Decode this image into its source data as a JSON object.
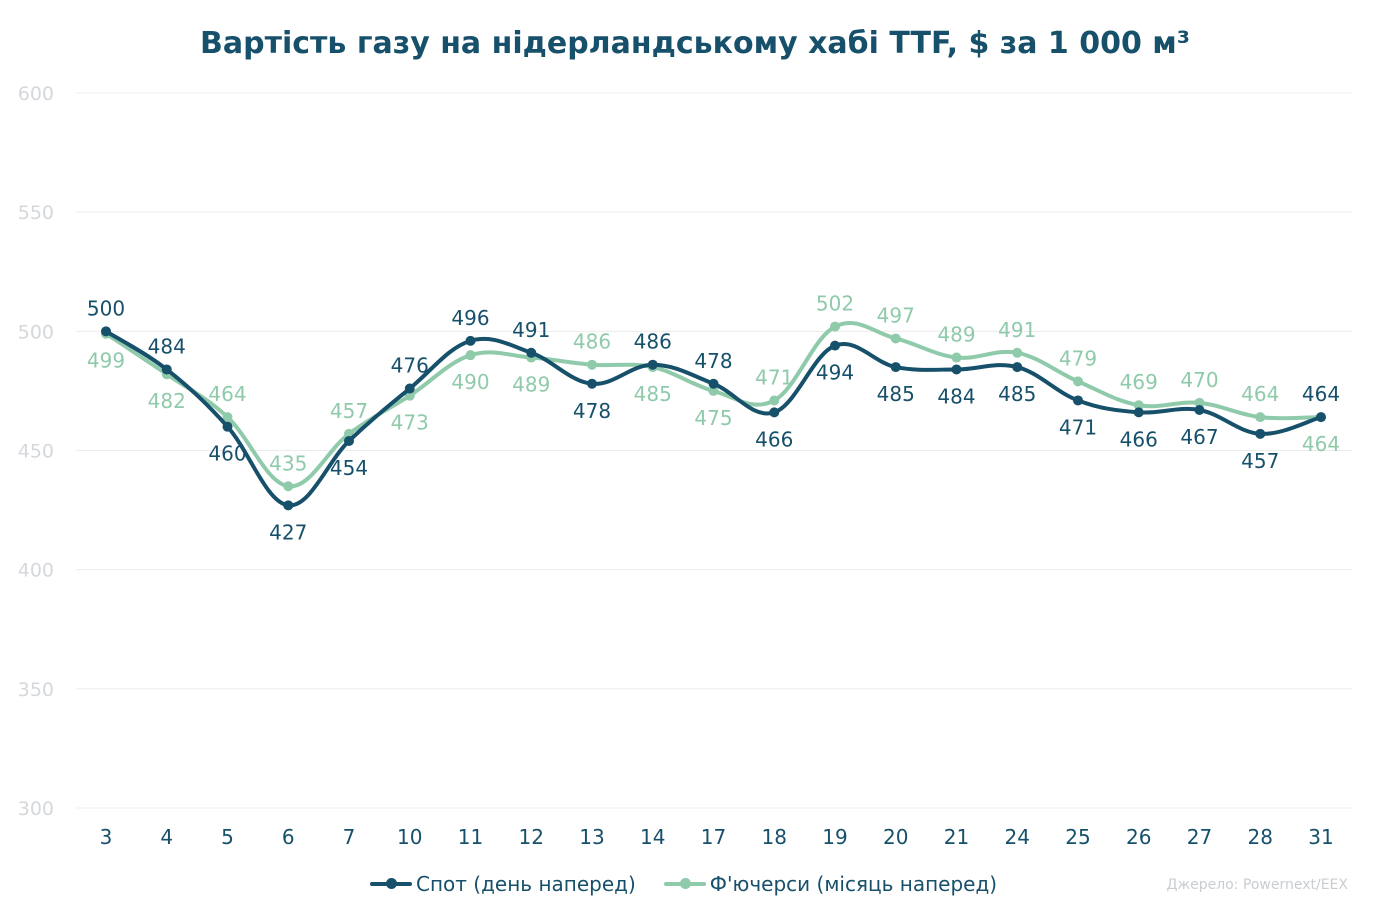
{
  "chart_data": {
    "type": "line",
    "title": "Вартість газу на нідерландському хабі TTF, $ за 1 000 м³",
    "categories": [
      "3",
      "4",
      "5",
      "6",
      "7",
      "10",
      "11",
      "12",
      "13",
      "14",
      "17",
      "18",
      "19",
      "20",
      "21",
      "24",
      "25",
      "26",
      "27",
      "28",
      "31"
    ],
    "series": [
      {
        "name": "Спот (день наперед)",
        "color": "#17506a",
        "values": [
          500,
          484,
          460,
          427,
          454,
          476,
          496,
          491,
          478,
          486,
          478,
          466,
          494,
          485,
          484,
          485,
          471,
          466,
          467,
          457,
          464
        ]
      },
      {
        "name": "Ф'ючерси (місяць наперед)",
        "color": "#8fcaaa",
        "values": [
          499,
          482,
          464,
          435,
          457,
          473,
          490,
          489,
          486,
          485,
          475,
          471,
          502,
          497,
          489,
          491,
          479,
          469,
          470,
          464,
          464
        ]
      }
    ],
    "yticks": [
      300,
      350,
      400,
      450,
      500,
      550,
      600
    ],
    "ylim": [
      300,
      600
    ],
    "grid": true,
    "legend": "bottom-center"
  },
  "source": "Джерело: Powernext/EEX"
}
